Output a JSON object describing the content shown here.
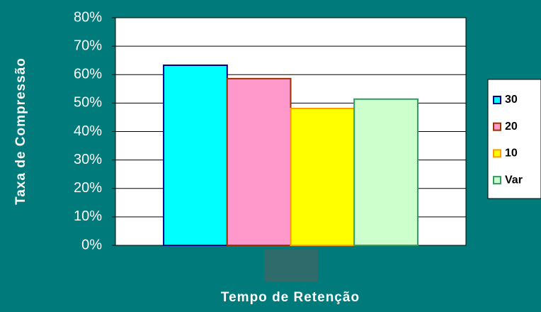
{
  "chart_data": {
    "type": "bar",
    "xlabel": "Tempo de Retenção",
    "ylabel": "Taxa de Compressão",
    "categories": [
      null
    ],
    "series": [
      {
        "name": "30",
        "color": "#00ffff",
        "edge": "#000080",
        "values": [
          63.3
        ]
      },
      {
        "name": "20",
        "color": "#ff99cc",
        "edge": "#993300",
        "values": [
          58.6
        ]
      },
      {
        "name": "10",
        "color": "#ffff00",
        "edge": "#ff9900",
        "values": [
          48.1
        ]
      },
      {
        "name": "Var",
        "color": "#ccffcc",
        "edge": "#339966",
        "values": [
          51.4
        ]
      }
    ],
    "ylim": [
      0,
      80
    ],
    "yticks": [
      {
        "value": 0,
        "label": "0%"
      },
      {
        "value": 10,
        "label": "10%"
      },
      {
        "value": 20,
        "label": "20%"
      },
      {
        "value": 30,
        "label": "30%"
      },
      {
        "value": 40,
        "label": "40%"
      },
      {
        "value": 50,
        "label": "50%"
      },
      {
        "value": 60,
        "label": "60%"
      },
      {
        "value": 70,
        "label": "70%"
      },
      {
        "value": 80,
        "label": "80%"
      }
    ],
    "grid": true,
    "legend": "right"
  }
}
